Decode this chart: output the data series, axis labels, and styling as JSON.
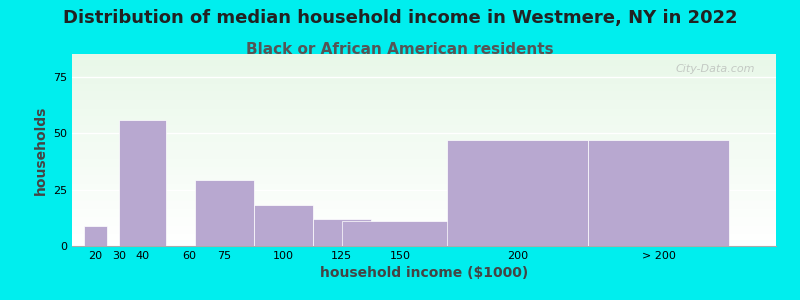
{
  "title": "Distribution of median household income in Westmere, NY in 2022",
  "subtitle": "Black or African American residents",
  "xlabel": "household income ($1000)",
  "ylabel": "households",
  "background_color": "#00EEEE",
  "plot_bg_top": "#f0fff0",
  "plot_bg_bottom": "#ffffff",
  "bar_color": "#b8a8d0",
  "bar_edge_color": "#9988bb",
  "categories": [
    "20",
    "30",
    "40",
    "60",
    "75",
    "100",
    "125",
    "150",
    "200",
    "> 200"
  ],
  "values": [
    9,
    0,
    56,
    0,
    29,
    18,
    12,
    11,
    47,
    47
  ],
  "bar_positions": [
    20,
    30,
    40,
    60,
    75,
    100,
    125,
    150,
    200,
    260
  ],
  "bar_widths": [
    10,
    10,
    20,
    15,
    25,
    25,
    25,
    50,
    60,
    60
  ],
  "xlim": [
    10,
    310
  ],
  "ylim": [
    0,
    85
  ],
  "yticks": [
    0,
    25,
    50,
    75
  ],
  "xtick_labels": [
    "20",
    "30",
    "40",
    "60",
    "75",
    "100",
    "125",
    "150",
    "200",
    "> 200"
  ],
  "xtick_positions": [
    20,
    30,
    40,
    60,
    75,
    100,
    125,
    150,
    200,
    260
  ],
  "title_fontsize": 13,
  "subtitle_fontsize": 11,
  "axis_label_fontsize": 10,
  "watermark": "City-Data.com"
}
